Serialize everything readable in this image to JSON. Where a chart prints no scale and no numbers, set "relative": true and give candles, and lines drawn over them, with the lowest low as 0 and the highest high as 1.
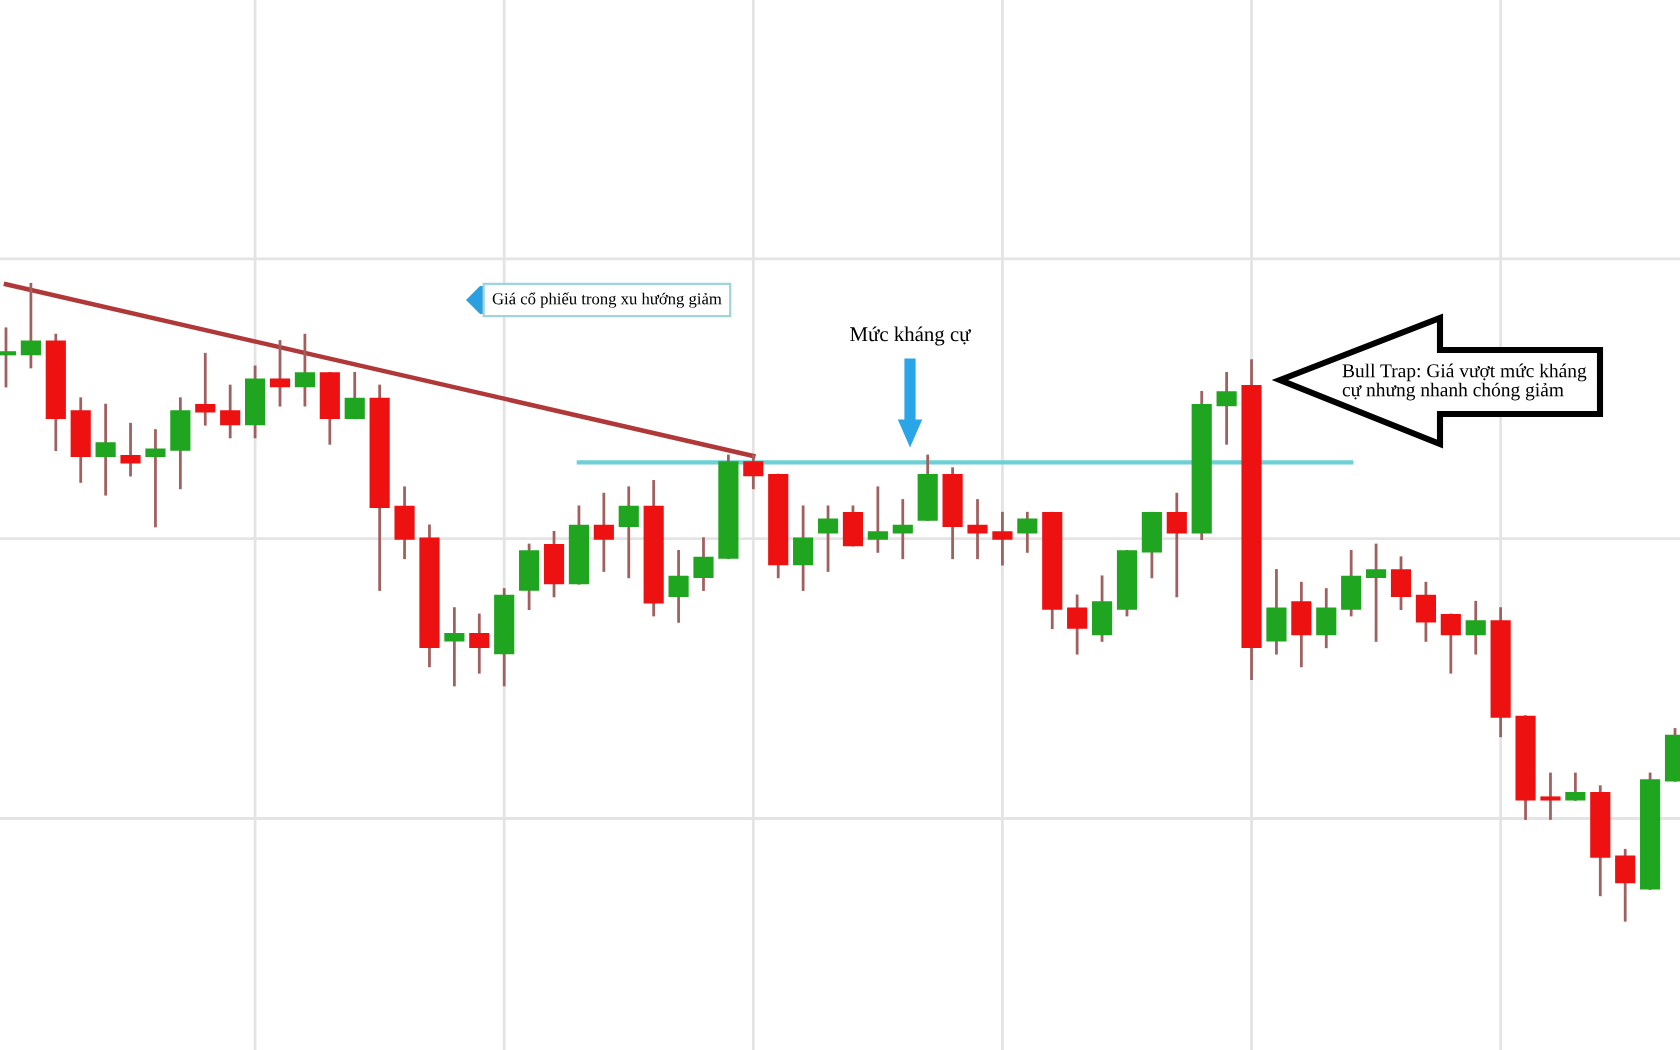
{
  "chart_data": {
    "type": "candlestick",
    "relative": true,
    "grid": true,
    "categories": [
      null,
      null,
      null,
      null,
      null,
      null,
      null,
      null,
      null,
      null,
      null,
      null,
      null,
      null,
      null,
      null,
      null,
      null,
      null,
      null,
      null,
      null,
      null,
      null,
      null,
      null,
      null,
      null,
      null,
      null,
      null,
      null,
      null,
      null,
      null,
      null,
      null,
      null,
      null,
      null,
      null,
      null,
      null,
      null,
      null,
      null,
      null,
      null,
      null,
      null,
      null,
      null,
      null,
      null,
      null,
      null,
      null,
      null,
      null,
      null,
      null,
      null,
      null,
      null,
      null,
      null,
      null,
      null
    ],
    "series": [
      {
        "type": "line",
        "color": "#b03838",
        "values": [
          1.0,
          null,
          null,
          null,
          null,
          null,
          null,
          null,
          null,
          null,
          null,
          null,
          null,
          null,
          null,
          null,
          null,
          null,
          null,
          null,
          null,
          null,
          null,
          null,
          null,
          null,
          null,
          null,
          null,
          null,
          0.73,
          null,
          null,
          null,
          null,
          null,
          null,
          null,
          null,
          null,
          null,
          null,
          null,
          null,
          null,
          null,
          null,
          null,
          null,
          null,
          null,
          null,
          null,
          null,
          null,
          null,
          null,
          null,
          null,
          null,
          null,
          null,
          null,
          null,
          null,
          null,
          null,
          null
        ]
      },
      {
        "type": "line",
        "color": "#6cd0d6",
        "values": [
          null,
          null,
          null,
          null,
          null,
          null,
          null,
          null,
          null,
          null,
          null,
          null,
          null,
          null,
          null,
          null,
          null,
          null,
          null,
          null,
          null,
          null,
          null,
          0.72,
          null,
          null,
          null,
          null,
          null,
          null,
          null,
          null,
          null,
          null,
          null,
          null,
          null,
          null,
          null,
          null,
          null,
          null,
          null,
          null,
          null,
          null,
          null,
          null,
          null,
          null,
          null,
          null,
          null,
          null,
          0.72,
          null,
          null,
          null,
          null,
          null,
          null,
          null,
          null,
          null,
          null,
          null,
          null,
          null
        ]
      },
      {
        "colors": [
          "#1fa51f",
          "#1fa51f",
          "#ee1111",
          "#ee1111",
          "#1fa51f",
          "#ee1111",
          "#1fa51f",
          "#1fa51f",
          "#ee1111",
          "#ee1111",
          "#1fa51f",
          "#ee1111",
          "#1fa51f",
          "#ee1111",
          "#1fa51f",
          "#ee1111",
          "#ee1111",
          "#ee1111",
          "#1fa51f",
          "#ee1111",
          "#1fa51f",
          "#1fa51f",
          "#ee1111",
          "#1fa51f",
          "#ee1111",
          "#1fa51f",
          "#ee1111",
          "#1fa51f",
          "#1fa51f",
          "#1fa51f",
          "#ee1111",
          "#ee1111",
          "#1fa51f",
          "#1fa51f",
          "#ee1111",
          "#1fa51f",
          "#1fa51f",
          "#1fa51f",
          "#ee1111",
          "#ee1111",
          "#ee1111",
          "#1fa51f",
          "#ee1111",
          "#ee1111",
          "#1fa51f",
          "#1fa51f",
          "#1fa51f",
          "#ee1111",
          "#1fa51f",
          "#1fa51f",
          "#ee1111",
          "#1fa51f",
          "#ee1111",
          "#1fa51f",
          "#1fa51f",
          "#1fa51f",
          "#ee1111",
          "#ee1111",
          "#ee1111",
          "#1fa51f",
          "#ee1111",
          "#ee1111",
          "#ee1111",
          "#1fa51f",
          "#ee1111",
          "#ee1111",
          "#1fa51f",
          "#1fa51f"
        ],
        "ohlc": [
          [
            0.89,
            0.93,
            0.84,
            0.893
          ],
          [
            0.89,
            1.0,
            0.87,
            0.91
          ],
          [
            0.91,
            0.92,
            0.74,
            0.79
          ],
          [
            0.8,
            0.82,
            0.69,
            0.73
          ],
          [
            0.73,
            0.81,
            0.67,
            0.75
          ],
          [
            0.73,
            0.78,
            0.7,
            0.72
          ],
          [
            0.73,
            0.77,
            0.62,
            0.74
          ],
          [
            0.74,
            0.82,
            0.68,
            0.8
          ],
          [
            0.81,
            0.89,
            0.78,
            0.8
          ],
          [
            0.8,
            0.84,
            0.76,
            0.78
          ],
          [
            0.78,
            0.87,
            0.76,
            0.85
          ],
          [
            0.85,
            0.91,
            0.81,
            0.84
          ],
          [
            0.84,
            0.92,
            0.81,
            0.86
          ],
          [
            0.86,
            0.86,
            0.75,
            0.79
          ],
          [
            0.79,
            0.86,
            0.79,
            0.82
          ],
          [
            0.82,
            0.84,
            0.52,
            0.65
          ],
          [
            0.65,
            0.68,
            0.57,
            0.6
          ],
          [
            0.6,
            0.62,
            0.4,
            0.43
          ],
          [
            0.44,
            0.49,
            0.37,
            0.45
          ],
          [
            0.45,
            0.48,
            0.39,
            0.43
          ],
          [
            0.42,
            0.52,
            0.37,
            0.51
          ],
          [
            0.52,
            0.59,
            0.49,
            0.58
          ],
          [
            0.59,
            0.61,
            0.51,
            0.53
          ],
          [
            0.53,
            0.65,
            0.53,
            0.62
          ],
          [
            0.62,
            0.67,
            0.55,
            0.6
          ],
          [
            0.62,
            0.68,
            0.54,
            0.65
          ],
          [
            0.65,
            0.69,
            0.48,
            0.5
          ],
          [
            0.51,
            0.58,
            0.47,
            0.54
          ],
          [
            0.54,
            0.6,
            0.52,
            0.57
          ],
          [
            0.57,
            0.73,
            0.57,
            0.72
          ],
          [
            0.72,
            0.73,
            0.68,
            0.7
          ],
          [
            0.7,
            0.7,
            0.54,
            0.56
          ],
          [
            0.56,
            0.65,
            0.52,
            0.6
          ],
          [
            0.61,
            0.65,
            0.55,
            0.63
          ],
          [
            0.64,
            0.65,
            0.59,
            0.59
          ],
          [
            0.6,
            0.68,
            0.58,
            0.61
          ],
          [
            0.61,
            0.66,
            0.57,
            0.62
          ],
          [
            0.63,
            0.73,
            0.63,
            0.7
          ],
          [
            0.7,
            0.71,
            0.57,
            0.62
          ],
          [
            0.62,
            0.66,
            0.57,
            0.61
          ],
          [
            0.61,
            0.64,
            0.56,
            0.6
          ],
          [
            0.61,
            0.64,
            0.58,
            0.63
          ],
          [
            0.64,
            0.64,
            0.46,
            0.49
          ],
          [
            0.49,
            0.51,
            0.42,
            0.46
          ],
          [
            0.45,
            0.54,
            0.44,
            0.5
          ],
          [
            0.49,
            0.58,
            0.48,
            0.58
          ],
          [
            0.58,
            0.64,
            0.54,
            0.64
          ],
          [
            0.64,
            0.67,
            0.51,
            0.61
          ],
          [
            0.61,
            0.83,
            0.6,
            0.81
          ],
          [
            0.81,
            0.86,
            0.75,
            0.83
          ],
          [
            0.84,
            0.88,
            0.38,
            0.43
          ],
          [
            0.44,
            0.55,
            0.42,
            0.49
          ],
          [
            0.5,
            0.53,
            0.4,
            0.45
          ],
          [
            0.45,
            0.52,
            0.43,
            0.49
          ],
          [
            0.49,
            0.58,
            0.48,
            0.54
          ],
          [
            0.54,
            0.59,
            0.44,
            0.55
          ],
          [
            0.55,
            0.57,
            0.49,
            0.51
          ],
          [
            0.51,
            0.53,
            0.44,
            0.47
          ],
          [
            0.48,
            0.48,
            0.39,
            0.45
          ],
          [
            0.45,
            0.5,
            0.42,
            0.47
          ],
          [
            0.47,
            0.49,
            0.29,
            0.32
          ],
          [
            0.32,
            0.32,
            0.16,
            0.19
          ],
          [
            0.193,
            0.23,
            0.16,
            0.19
          ],
          [
            0.19,
            0.23,
            0.19,
            0.2
          ],
          [
            0.2,
            0.21,
            0.04,
            0.1
          ],
          [
            0.1,
            0.11,
            0.0,
            0.06
          ],
          [
            0.05,
            0.23,
            0.05,
            0.22
          ],
          [
            0.22,
            0.3,
            0.22,
            0.29
          ]
        ]
      }
    ],
    "annotations": [
      "Giá cổ phiếu trong xu hướng giảm",
      "Mức kháng cự",
      "Bull Trap: Giá vượt mức kháng\ncự nhưng nhanh chóng giảm"
    ]
  }
}
